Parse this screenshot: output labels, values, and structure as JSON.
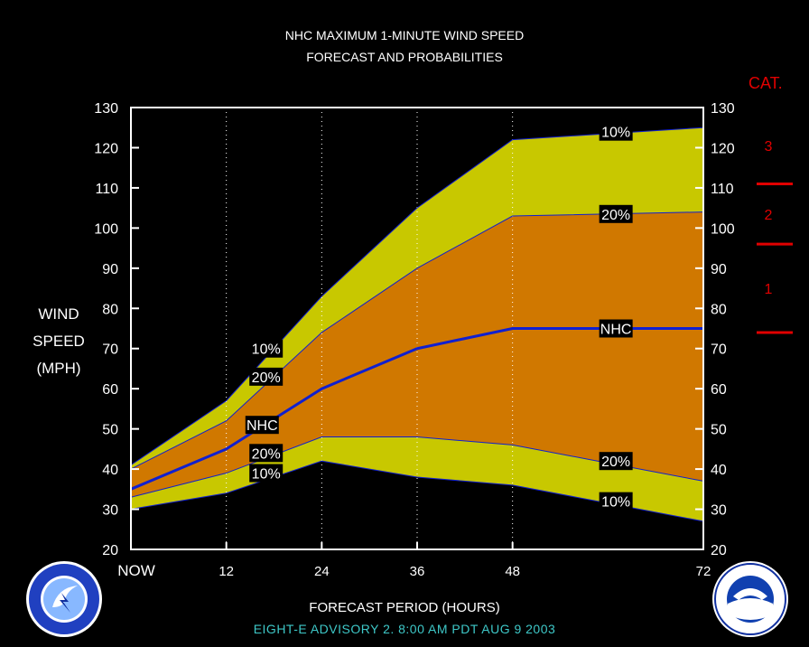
{
  "header": {
    "title_line1": "NHC MAXIMUM 1-MINUTE WIND SPEED",
    "title_line2": "FORECAST AND PROBABILITIES"
  },
  "footer": {
    "xlabel": "FORECAST PERIOD (HOURS)",
    "advisory": "EIGHT-E   ADVISORY  2. 8:00 AM PDT AUG 9 2003"
  },
  "category_scale": {
    "title": "CAT.",
    "color": "#e00000",
    "categories": [
      {
        "label": "1",
        "min": 74,
        "max": 96
      },
      {
        "label": "2",
        "min": 96,
        "max": 111
      },
      {
        "label": "3",
        "min": 111,
        "max": 130
      }
    ]
  },
  "colors": {
    "outer_band": "#c8c800",
    "inner_band": "#d07800",
    "nhc_line": "#1020d0",
    "advisory_text": "#3ec8c8"
  },
  "chart_data": {
    "type": "area",
    "ylabel": [
      "WIND",
      "SPEED",
      "(MPH)"
    ],
    "xlabel": "FORECAST PERIOD (HOURS)",
    "ylim": [
      20,
      130
    ],
    "xlim": [
      0,
      72
    ],
    "x_ticks": [
      0,
      12,
      24,
      36,
      48,
      72
    ],
    "x_tick_labels": [
      "NOW",
      "12",
      "24",
      "36",
      "48",
      "72"
    ],
    "y_ticks": [
      20,
      30,
      40,
      50,
      60,
      70,
      80,
      90,
      100,
      110,
      120,
      130
    ],
    "grid_x": [
      12,
      24,
      36,
      48
    ],
    "x": [
      0,
      12,
      24,
      36,
      48,
      72
    ],
    "series": [
      {
        "name": "10%",
        "role": "upper_10",
        "values": [
          41,
          57,
          83,
          105,
          122,
          125
        ]
      },
      {
        "name": "20%",
        "role": "upper_20",
        "values": [
          40,
          52,
          74,
          90,
          103,
          104
        ]
      },
      {
        "name": "NHC",
        "role": "nhc",
        "values": [
          35,
          45,
          60,
          70,
          75,
          75
        ]
      },
      {
        "name": "20%",
        "role": "lower_20",
        "values": [
          33,
          39,
          48,
          48,
          46,
          37
        ]
      },
      {
        "name": "10%",
        "role": "lower_10",
        "values": [
          30,
          34,
          42,
          38,
          36,
          27
        ]
      }
    ],
    "labels": [
      {
        "text": "10%",
        "x": 17,
        "y": 70
      },
      {
        "text": "20%",
        "x": 17,
        "y": 63
      },
      {
        "text": "NHC",
        "x": 16.5,
        "y": 51
      },
      {
        "text": "20%",
        "x": 17,
        "y": 44
      },
      {
        "text": "10%",
        "x": 17,
        "y": 39
      },
      {
        "text": "10%",
        "x": 61,
        "y": 124
      },
      {
        "text": "20%",
        "x": 61,
        "y": 103.5
      },
      {
        "text": "NHC",
        "x": 61,
        "y": 75
      },
      {
        "text": "20%",
        "x": 61,
        "y": 42
      },
      {
        "text": "10%",
        "x": 61,
        "y": 32
      }
    ]
  }
}
